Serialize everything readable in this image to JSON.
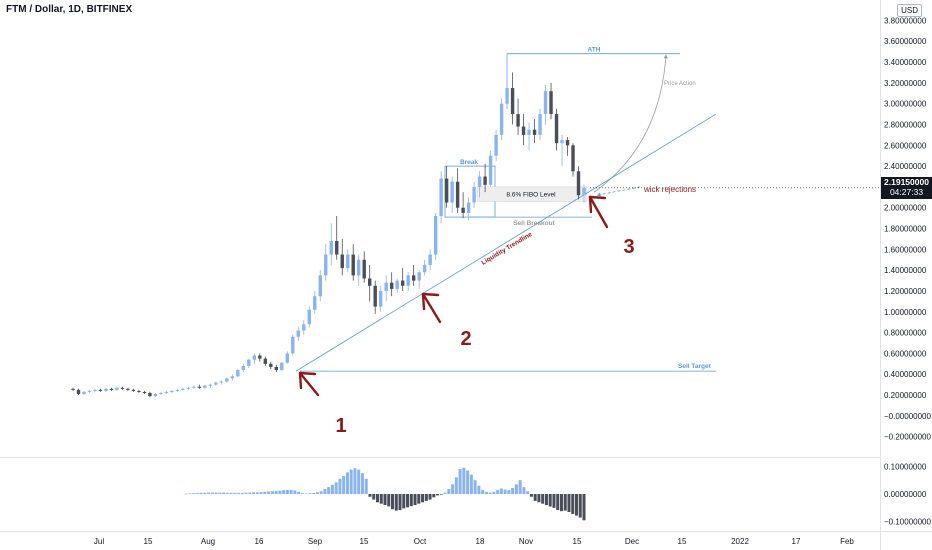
{
  "header": {
    "title": "FTM / Dollar, 1D, BITFINEX",
    "currency": "USD"
  },
  "price_badge": {
    "price": "2.19150000",
    "countdown": "04:27:33"
  },
  "colors": {
    "up": "#89b4f0",
    "down": "#4a4e5a",
    "line": "#5b9bd5",
    "annotation": "#8b1a1a",
    "grid": "#e0e3eb"
  },
  "annotations": {
    "ath": "ATH",
    "price_action": "Price Action",
    "break": "Break",
    "fibo": "8.6% FIBO Level",
    "sell_breakout": "Sell Breakout",
    "liquidity": "Liquidity Trendline",
    "wick": "wick rejections",
    "sell_target": "Sell Target",
    "num1": "1",
    "num2": "2",
    "num3": "3"
  },
  "chart_data": {
    "type": "candlestick",
    "title": "FTM / Dollar, 1D, BITFINEX",
    "y_ticks": [
      "3.80000000",
      "3.60000000",
      "3.40000000",
      "3.20000000",
      "3.00000000",
      "2.80000000",
      "2.60000000",
      "2.40000000",
      "2.20000000",
      "2.00000000",
      "1.80000000",
      "1.60000000",
      "1.40000000",
      "1.20000000",
      "1.00000000",
      "0.80000000",
      "0.60000000",
      "0.40000000",
      "0.20000000",
      "−0.00000000",
      "−0.20000000"
    ],
    "y_tick_values": [
      3.8,
      3.6,
      3.4,
      3.2,
      3.0,
      2.8,
      2.6,
      2.4,
      2.2,
      2.0,
      1.8,
      1.6,
      1.4,
      1.2,
      1.0,
      0.8,
      0.6,
      0.4,
      0.2,
      0.0,
      -0.2
    ],
    "x_ticks": [
      "Jul",
      "15",
      "Aug",
      "16",
      "Sep",
      "15",
      "Oct",
      "18",
      "Nov",
      "15",
      "Dec",
      "15",
      "2022",
      "17",
      "Feb"
    ],
    "ylim": [
      -0.28,
      3.9
    ],
    "last_price": 2.1915,
    "levels": {
      "ath": 3.48,
      "sell_target": 0.43,
      "fibo_top": 2.2,
      "fibo_bottom": 2.06,
      "sell_breakout": 1.91,
      "break": 2.4
    },
    "candles": [
      [
        0.26,
        0.27,
        0.24,
        0.25
      ],
      [
        0.25,
        0.26,
        0.2,
        0.21
      ],
      [
        0.21,
        0.24,
        0.2,
        0.23
      ],
      [
        0.23,
        0.25,
        0.22,
        0.24
      ],
      [
        0.24,
        0.26,
        0.23,
        0.25
      ],
      [
        0.25,
        0.26,
        0.23,
        0.24
      ],
      [
        0.24,
        0.27,
        0.23,
        0.26
      ],
      [
        0.26,
        0.27,
        0.24,
        0.25
      ],
      [
        0.25,
        0.28,
        0.24,
        0.27
      ],
      [
        0.27,
        0.28,
        0.25,
        0.26
      ],
      [
        0.26,
        0.27,
        0.24,
        0.25
      ],
      [
        0.25,
        0.26,
        0.23,
        0.24
      ],
      [
        0.24,
        0.25,
        0.22,
        0.23
      ],
      [
        0.23,
        0.24,
        0.21,
        0.22
      ],
      [
        0.22,
        0.23,
        0.18,
        0.19
      ],
      [
        0.19,
        0.22,
        0.18,
        0.21
      ],
      [
        0.21,
        0.23,
        0.2,
        0.22
      ],
      [
        0.22,
        0.24,
        0.21,
        0.23
      ],
      [
        0.23,
        0.25,
        0.22,
        0.24
      ],
      [
        0.24,
        0.26,
        0.23,
        0.25
      ],
      [
        0.25,
        0.27,
        0.24,
        0.26
      ],
      [
        0.26,
        0.28,
        0.25,
        0.27
      ],
      [
        0.27,
        0.29,
        0.26,
        0.28
      ],
      [
        0.28,
        0.3,
        0.26,
        0.27
      ],
      [
        0.27,
        0.3,
        0.26,
        0.29
      ],
      [
        0.29,
        0.31,
        0.27,
        0.3
      ],
      [
        0.3,
        0.33,
        0.29,
        0.32
      ],
      [
        0.32,
        0.34,
        0.3,
        0.33
      ],
      [
        0.33,
        0.37,
        0.32,
        0.36
      ],
      [
        0.36,
        0.4,
        0.34,
        0.38
      ],
      [
        0.38,
        0.45,
        0.37,
        0.44
      ],
      [
        0.44,
        0.5,
        0.42,
        0.48
      ],
      [
        0.48,
        0.55,
        0.46,
        0.54
      ],
      [
        0.54,
        0.6,
        0.5,
        0.58
      ],
      [
        0.58,
        0.6,
        0.52,
        0.55
      ],
      [
        0.55,
        0.57,
        0.48,
        0.5
      ],
      [
        0.5,
        0.52,
        0.45,
        0.47
      ],
      [
        0.47,
        0.49,
        0.42,
        0.44
      ],
      [
        0.44,
        0.52,
        0.43,
        0.51
      ],
      [
        0.51,
        0.62,
        0.5,
        0.6
      ],
      [
        0.6,
        0.78,
        0.58,
        0.76
      ],
      [
        0.76,
        0.86,
        0.72,
        0.82
      ],
      [
        0.82,
        0.92,
        0.78,
        0.88
      ],
      [
        0.88,
        1.05,
        0.85,
        1.02
      ],
      [
        1.02,
        1.2,
        0.98,
        1.15
      ],
      [
        1.15,
        1.4,
        1.1,
        1.35
      ],
      [
        1.35,
        1.65,
        1.3,
        1.55
      ],
      [
        1.55,
        1.85,
        1.45,
        1.68
      ],
      [
        1.68,
        1.92,
        1.5,
        1.55
      ],
      [
        1.55,
        1.7,
        1.35,
        1.42
      ],
      [
        1.42,
        1.6,
        1.38,
        1.55
      ],
      [
        1.55,
        1.65,
        1.3,
        1.35
      ],
      [
        1.35,
        1.55,
        1.25,
        1.5
      ],
      [
        1.5,
        1.58,
        1.28,
        1.32
      ],
      [
        1.32,
        1.45,
        1.1,
        1.25
      ],
      [
        1.25,
        1.3,
        0.98,
        1.05
      ],
      [
        1.05,
        1.25,
        1.0,
        1.2
      ],
      [
        1.2,
        1.35,
        1.1,
        1.28
      ],
      [
        1.28,
        1.38,
        1.15,
        1.22
      ],
      [
        1.22,
        1.32,
        1.18,
        1.3
      ],
      [
        1.3,
        1.42,
        1.2,
        1.25
      ],
      [
        1.25,
        1.38,
        1.2,
        1.35
      ],
      [
        1.35,
        1.45,
        1.25,
        1.3
      ],
      [
        1.3,
        1.4,
        1.22,
        1.38
      ],
      [
        1.38,
        1.5,
        1.35,
        1.45
      ],
      [
        1.45,
        1.6,
        1.4,
        1.55
      ],
      [
        1.55,
        1.95,
        1.5,
        1.92
      ],
      [
        1.92,
        2.35,
        1.85,
        2.28
      ],
      [
        2.28,
        2.4,
        2.0,
        2.05
      ],
      [
        2.05,
        2.3,
        1.95,
        2.25
      ],
      [
        2.25,
        2.38,
        1.95,
        2.0
      ],
      [
        2.0,
        2.15,
        1.9,
        1.95
      ],
      [
        1.95,
        2.1,
        1.88,
        2.05
      ],
      [
        2.05,
        2.25,
        2.0,
        2.2
      ],
      [
        2.2,
        2.35,
        2.1,
        2.3
      ],
      [
        2.3,
        2.42,
        2.15,
        2.22
      ],
      [
        2.22,
        2.55,
        2.2,
        2.5
      ],
      [
        2.5,
        2.75,
        2.45,
        2.7
      ],
      [
        2.7,
        3.05,
        2.65,
        3.0
      ],
      [
        3.0,
        3.48,
        2.95,
        3.15
      ],
      [
        3.15,
        3.3,
        2.8,
        2.9
      ],
      [
        2.9,
        3.05,
        2.7,
        2.78
      ],
      [
        2.78,
        2.9,
        2.6,
        2.7
      ],
      [
        2.7,
        2.82,
        2.55,
        2.75
      ],
      [
        2.75,
        2.85,
        2.62,
        2.7
      ],
      [
        2.7,
        2.95,
        2.65,
        2.9
      ],
      [
        2.9,
        3.18,
        2.8,
        3.12
      ],
      [
        3.12,
        3.2,
        2.85,
        2.9
      ],
      [
        2.9,
        2.95,
        2.55,
        2.62
      ],
      [
        2.62,
        2.7,
        2.4,
        2.65
      ],
      [
        2.65,
        2.68,
        2.5,
        2.6
      ],
      [
        2.6,
        2.62,
        2.3,
        2.35
      ],
      [
        2.35,
        2.4,
        2.08,
        2.12
      ],
      [
        2.12,
        2.22,
        2.05,
        2.19
      ]
    ],
    "oscillator": {
      "ylim": [
        -0.13,
        0.13
      ],
      "y_ticks": [
        "0.10000000",
        "0.00000000",
        "−0.10000000"
      ],
      "y_tick_values": [
        0.1,
        0.0,
        -0.1
      ],
      "values": [
        0.001,
        0.002,
        0.003,
        0.003,
        0.004,
        0.004,
        0.005,
        0.005,
        0.005,
        0.005,
        0.005,
        0.004,
        0.004,
        0.004,
        0.004,
        0.004,
        0.005,
        0.005,
        0.006,
        0.006,
        0.007,
        0.008,
        0.009,
        0.01,
        0.011,
        0.012,
        0.014,
        0.015,
        0.015,
        0.013,
        0.008,
        0.003,
        0.002,
        0.003,
        0.004,
        0.006,
        0.01,
        0.018,
        0.025,
        0.033,
        0.042,
        0.055,
        0.065,
        0.078,
        0.088,
        0.093,
        0.088,
        0.075,
        0.055,
        -0.01,
        -0.02,
        -0.03,
        -0.035,
        -0.04,
        -0.045,
        -0.055,
        -0.06,
        -0.058,
        -0.052,
        -0.048,
        -0.044,
        -0.04,
        -0.035,
        -0.03,
        -0.025,
        -0.02,
        -0.012,
        -0.005,
        -0.002,
        0.005,
        0.018,
        0.035,
        0.06,
        0.09,
        0.095,
        0.085,
        0.07,
        0.05,
        0.03,
        0.015,
        0.008,
        0.005,
        0.008,
        0.015,
        0.02,
        0.016,
        0.014,
        0.022,
        0.035,
        0.05,
        0.025,
        0.01,
        -0.01,
        -0.025,
        -0.03,
        -0.035,
        -0.04,
        -0.045,
        -0.05,
        -0.058,
        -0.062,
        -0.06,
        -0.065,
        -0.072,
        -0.078,
        -0.085,
        -0.095
      ]
    }
  }
}
